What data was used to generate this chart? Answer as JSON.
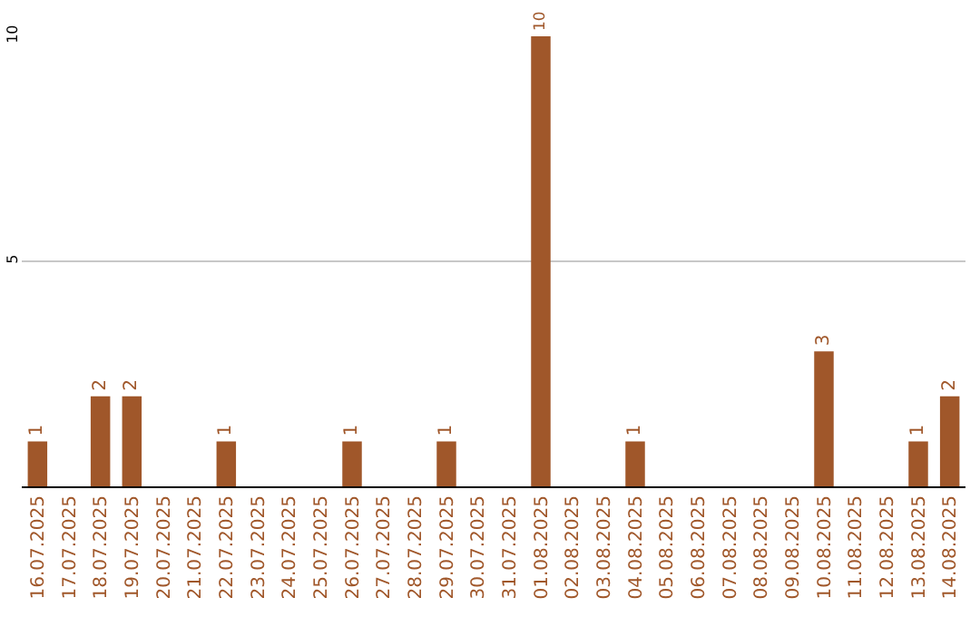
{
  "chart_data": {
    "type": "bar",
    "categories": [
      "16.07.2025",
      "17.07.2025",
      "18.07.2025",
      "19.07.2025",
      "20.07.2025",
      "21.07.2025",
      "22.07.2025",
      "23.07.2025",
      "24.07.2025",
      "25.07.2025",
      "26.07.2025",
      "27.07.2025",
      "28.07.2025",
      "29.07.2025",
      "30.07.2025",
      "31.07.2025",
      "01.08.2025",
      "02.08.2025",
      "03.08.2025",
      "04.08.2025",
      "05.08.2025",
      "06.08.2025",
      "07.08.2025",
      "08.08.2025",
      "09.08.2025",
      "10.08.2025",
      "11.08.2025",
      "12.08.2025",
      "13.08.2025",
      "14.08.2025"
    ],
    "values": [
      1,
      0,
      2,
      2,
      0,
      0,
      1,
      0,
      0,
      0,
      1,
      0,
      0,
      1,
      0,
      0,
      10,
      0,
      0,
      1,
      0,
      0,
      0,
      0,
      0,
      3,
      0,
      0,
      1,
      2
    ],
    "value_labels": [
      "1",
      null,
      "2",
      "2",
      null,
      null,
      "1",
      null,
      null,
      null,
      "1",
      null,
      null,
      "1",
      null,
      null,
      "10",
      null,
      null,
      "1",
      null,
      null,
      null,
      null,
      null,
      "3",
      null,
      null,
      "1",
      "2"
    ],
    "color": "#a0572a",
    "ylim": [
      0,
      10
    ],
    "yticks": [
      5,
      10
    ],
    "grid": "y"
  }
}
